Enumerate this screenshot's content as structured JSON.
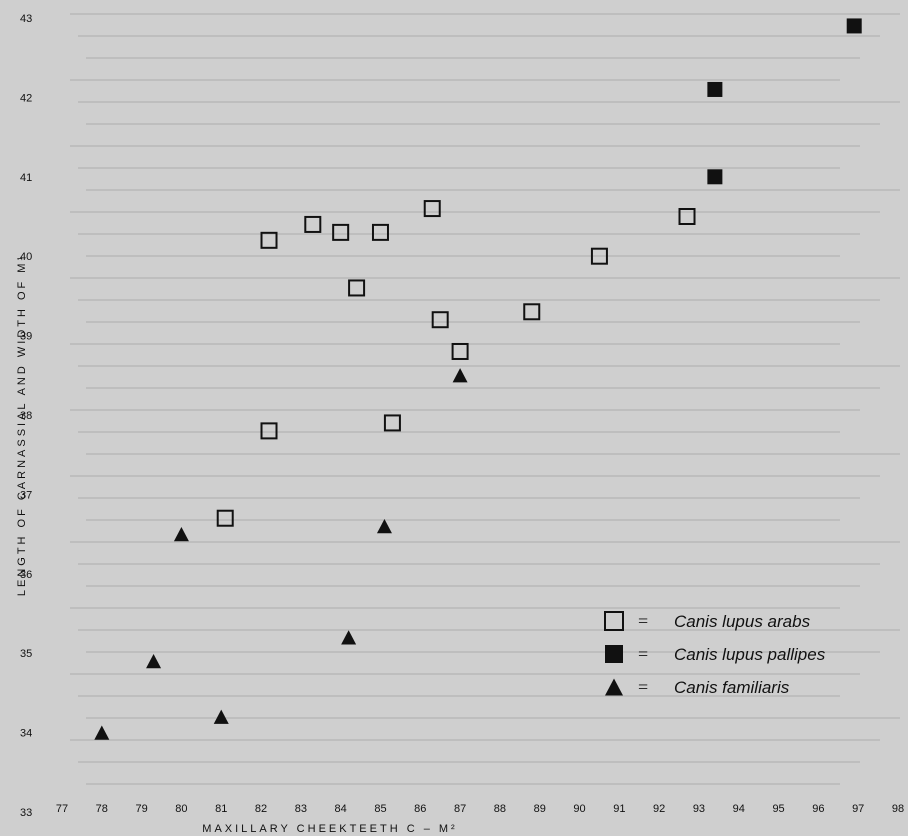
{
  "chart_data": {
    "type": "scatter",
    "title": "",
    "xlabel": "MAXILLARY CHEEKTEETH  C – M²",
    "ylabel": "LENGTH OF CARNASSIAL AND WIDTH OF M¹",
    "xlim": [
      77,
      98
    ],
    "ylim": [
      33,
      43
    ],
    "x_ticks": [
      "77",
      "78",
      "79",
      "80",
      "81",
      "82",
      "83",
      "84",
      "85",
      "86",
      "87",
      "88",
      "89",
      "90",
      "91",
      "92",
      "93",
      "94",
      "95",
      "96",
      "97",
      "98"
    ],
    "y_ticks": [
      "33",
      "34",
      "35",
      "36",
      "37",
      "38",
      "39",
      "40",
      "41",
      "42",
      "43"
    ],
    "grid": false,
    "legend_position": "bottom-right",
    "series": [
      {
        "name": "Canis lupus arabs",
        "marker": "open-square",
        "color": "#111111",
        "points": [
          {
            "x": 82.2,
            "y": 40.2
          },
          {
            "x": 83.3,
            "y": 40.4
          },
          {
            "x": 84.0,
            "y": 40.3
          },
          {
            "x": 85.0,
            "y": 40.3
          },
          {
            "x": 86.3,
            "y": 40.6
          },
          {
            "x": 84.4,
            "y": 39.6
          },
          {
            "x": 86.5,
            "y": 39.2
          },
          {
            "x": 87.0,
            "y": 38.8
          },
          {
            "x": 88.8,
            "y": 39.3
          },
          {
            "x": 90.5,
            "y": 40.0
          },
          {
            "x": 92.7,
            "y": 40.5
          },
          {
            "x": 82.2,
            "y": 37.8
          },
          {
            "x": 85.3,
            "y": 37.9
          },
          {
            "x": 81.1,
            "y": 36.7
          }
        ]
      },
      {
        "name": "Canis lupus pallipes",
        "marker": "filled-square",
        "color": "#111111",
        "points": [
          {
            "x": 96.9,
            "y": 42.9
          },
          {
            "x": 93.4,
            "y": 42.1
          },
          {
            "x": 93.4,
            "y": 41.0
          }
        ]
      },
      {
        "name": "Canis familiaris",
        "marker": "filled-triangle",
        "color": "#111111",
        "points": [
          {
            "x": 87.0,
            "y": 38.5
          },
          {
            "x": 80.0,
            "y": 36.5
          },
          {
            "x": 85.1,
            "y": 36.6
          },
          {
            "x": 84.2,
            "y": 35.2
          },
          {
            "x": 79.3,
            "y": 34.9
          },
          {
            "x": 81.0,
            "y": 34.2
          },
          {
            "x": 78.0,
            "y": 34.0
          }
        ]
      }
    ]
  }
}
